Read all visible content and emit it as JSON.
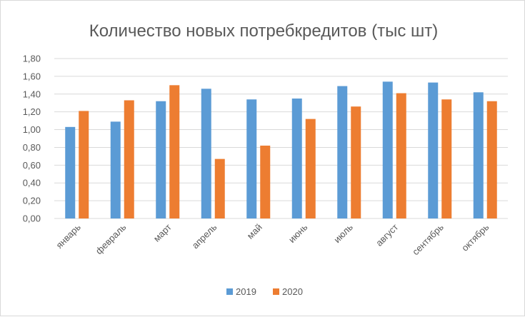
{
  "chart_data": {
    "type": "bar",
    "title": "Количество новых потребкредитов (тыс шт)",
    "categories": [
      "январь",
      "февраль",
      "март",
      "апрель",
      "май",
      "июнь",
      "июль",
      "август",
      "сентябрь",
      "октябрь"
    ],
    "series": [
      {
        "name": "2019",
        "color": "#5B9BD5",
        "values": [
          1.03,
          1.09,
          1.32,
          1.46,
          1.34,
          1.35,
          1.49,
          1.54,
          1.53,
          1.42
        ]
      },
      {
        "name": "2020",
        "color": "#ED7D31",
        "values": [
          1.21,
          1.33,
          1.5,
          0.67,
          0.82,
          1.12,
          1.26,
          1.41,
          1.34,
          1.32
        ]
      }
    ],
    "y_ticks": [
      "0,00",
      "0,20",
      "0,40",
      "0,60",
      "0,80",
      "1,00",
      "1,20",
      "1,40",
      "1,60",
      "1,80"
    ],
    "ylim": [
      0,
      1.8
    ],
    "grid": true,
    "legend_position": "bottom",
    "xlabel": "",
    "ylabel": ""
  }
}
